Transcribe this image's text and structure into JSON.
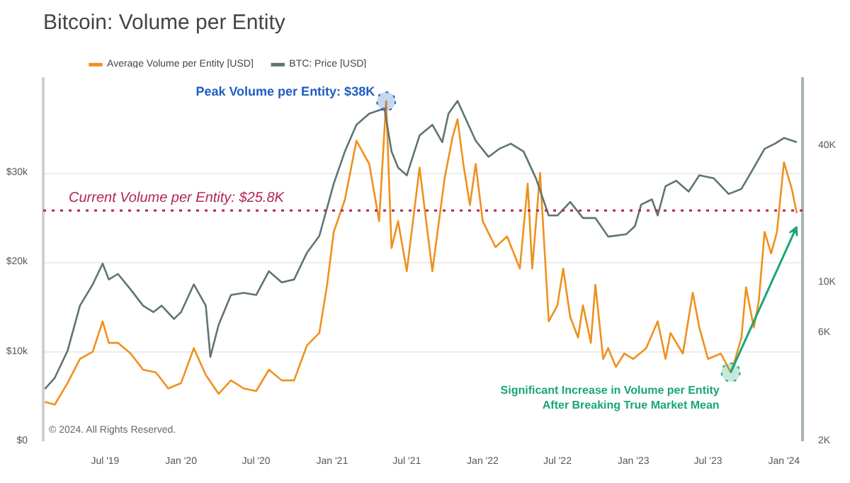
{
  "chart_data": {
    "type": "line",
    "title": "Bitcoin: Volume per Entity",
    "series": [
      {
        "name": "Average Volume per Entity [USD]",
        "color": "#f0901e",
        "x": [
          "2019-02-05",
          "2019-03-01",
          "2019-04-01",
          "2019-05-01",
          "2019-06-01",
          "2019-06-25",
          "2019-07-10",
          "2019-08-01",
          "2019-09-01",
          "2019-10-01",
          "2019-11-01",
          "2019-12-01",
          "2020-01-01",
          "2020-02-01",
          "2020-03-01",
          "2020-04-01",
          "2020-05-01",
          "2020-06-01",
          "2020-07-01",
          "2020-08-01",
          "2020-09-01",
          "2020-10-01",
          "2020-11-01",
          "2020-12-01",
          "2020-12-20",
          "2021-01-05",
          "2021-02-01",
          "2021-03-01",
          "2021-04-01",
          "2021-04-25",
          "2021-05-12",
          "2021-05-25",
          "2021-06-10",
          "2021-07-01",
          "2021-08-01",
          "2021-09-01",
          "2021-10-01",
          "2021-10-20",
          "2021-11-01",
          "2021-11-15",
          "2021-12-01",
          "2021-12-15",
          "2022-01-01",
          "2022-02-01",
          "2022-03-01",
          "2022-04-01",
          "2022-04-20",
          "2022-05-01",
          "2022-05-20",
          "2022-06-10",
          "2022-07-01",
          "2022-07-15",
          "2022-08-01",
          "2022-08-20",
          "2022-09-01",
          "2022-09-20",
          "2022-10-01",
          "2022-10-20",
          "2022-11-01",
          "2022-11-20",
          "2022-12-10",
          "2023-01-01",
          "2023-02-01",
          "2023-03-01",
          "2023-03-20",
          "2023-04-01",
          "2023-05-01",
          "2023-05-25",
          "2023-06-10",
          "2023-07-01",
          "2023-08-01",
          "2023-08-25",
          "2023-09-05",
          "2023-09-20",
          "2023-10-01",
          "2023-10-20",
          "2023-11-01",
          "2023-11-15",
          "2023-12-01",
          "2023-12-15",
          "2024-01-01",
          "2024-01-20",
          "2024-02-01"
        ],
        "values": [
          4400,
          4100,
          6500,
          9200,
          10000,
          13400,
          11000,
          11000,
          9800,
          8000,
          7700,
          5900,
          6500,
          10400,
          7400,
          5300,
          6800,
          5900,
          5600,
          8000,
          6800,
          6800,
          10700,
          12100,
          17500,
          23400,
          27000,
          33600,
          31000,
          24600,
          38000,
          21600,
          24600,
          19000,
          30600,
          19000,
          29500,
          34000,
          36000,
          31000,
          26400,
          31000,
          24600,
          21700,
          22900,
          19300,
          28800,
          19300,
          30000,
          13400,
          15200,
          19300,
          13900,
          11600,
          15200,
          11000,
          17500,
          9200,
          10400,
          8300,
          9800,
          9200,
          10400,
          13400,
          9200,
          12100,
          9800,
          16600,
          12700,
          9200,
          9800,
          7700,
          9200,
          11600,
          17200,
          12700,
          15700,
          23400,
          21000,
          23400,
          31200,
          28200,
          25500
        ]
      },
      {
        "name": "BTC: Price [USD]",
        "color": "#5f7572",
        "axis": "y2",
        "x": [
          "2019-02-05",
          "2019-03-01",
          "2019-04-01",
          "2019-05-01",
          "2019-06-01",
          "2019-06-25",
          "2019-07-10",
          "2019-08-01",
          "2019-09-01",
          "2019-10-01",
          "2019-10-26",
          "2019-11-15",
          "2019-12-15",
          "2020-01-01",
          "2020-02-01",
          "2020-03-01",
          "2020-03-12",
          "2020-04-01",
          "2020-05-01",
          "2020-06-01",
          "2020-07-01",
          "2020-08-01",
          "2020-09-01",
          "2020-10-01",
          "2020-11-01",
          "2020-12-01",
          "2021-01-05",
          "2021-02-01",
          "2021-03-01",
          "2021-04-01",
          "2021-05-08",
          "2021-05-25",
          "2021-06-10",
          "2021-07-01",
          "2021-08-01",
          "2021-09-01",
          "2021-09-25",
          "2021-10-10",
          "2021-11-01",
          "2021-12-15",
          "2022-01-15",
          "2022-02-10",
          "2022-03-10",
          "2022-04-10",
          "2022-05-10",
          "2022-06-10",
          "2022-07-01",
          "2022-08-01",
          "2022-09-01",
          "2022-10-01",
          "2022-11-01",
          "2022-12-15",
          "2023-01-05",
          "2023-01-20",
          "2023-02-15",
          "2023-03-01",
          "2023-03-20",
          "2023-04-15",
          "2023-05-15",
          "2023-06-10",
          "2023-07-15",
          "2023-08-20",
          "2023-09-20",
          "2023-10-20",
          "2023-11-15",
          "2023-12-10",
          "2024-01-01",
          "2024-02-01"
        ],
        "values": [
          3400,
          3800,
          5000,
          7900,
          9800,
          12100,
          10300,
          10900,
          9300,
          7900,
          7400,
          7900,
          6900,
          7400,
          9800,
          7900,
          4700,
          6500,
          8800,
          9000,
          8800,
          11200,
          10000,
          10300,
          13500,
          16000,
          27200,
          37700,
          49400,
          55300,
          58300,
          37700,
          32000,
          29600,
          44300,
          49400,
          41400,
          55300,
          62900,
          42000,
          35700,
          38700,
          40800,
          37700,
          28700,
          19700,
          19700,
          22600,
          19200,
          19200,
          15900,
          16300,
          17700,
          22000,
          23200,
          19700,
          26500,
          28000,
          25100,
          29600,
          28700,
          24500,
          25800,
          32000,
          38700,
          40800,
          43200,
          41400
        ]
      }
    ],
    "xlim": [
      "2019-02-01",
      "2024-02-15"
    ],
    "xticks": [
      {
        "value": "2019-07-01",
        "label": "Jul '19"
      },
      {
        "value": "2020-01-01",
        "label": "Jan '20"
      },
      {
        "value": "2020-07-01",
        "label": "Jul '20"
      },
      {
        "value": "2021-01-01",
        "label": "Jan '21"
      },
      {
        "value": "2021-07-01",
        "label": "Jul '21"
      },
      {
        "value": "2022-01-01",
        "label": "Jan '22"
      },
      {
        "value": "2022-07-01",
        "label": "Jul '22"
      },
      {
        "value": "2023-01-01",
        "label": "Jan '23"
      },
      {
        "value": "2023-07-01",
        "label": "Jul '23"
      },
      {
        "value": "2024-01-01",
        "label": "Jan '24"
      }
    ],
    "ylim": [
      0,
      40700
    ],
    "yticks": [
      {
        "value": 0,
        "label": "$0"
      },
      {
        "value": 10000,
        "label": "$10k"
      },
      {
        "value": 20000,
        "label": "$20k"
      },
      {
        "value": 30000,
        "label": "$30k"
      }
    ],
    "y2lim": [
      2000,
      80000
    ],
    "y2ticks": [
      {
        "value": 2000,
        "label": "2K"
      },
      {
        "value": 6000,
        "label": "6K"
      },
      {
        "value": 10000,
        "label": "10K"
      },
      {
        "value": 40000,
        "label": "40K"
      }
    ],
    "log": "y2",
    "grid": "y",
    "legend": "top",
    "ref_lines": [
      {
        "axis": "y",
        "value": 25800,
        "label": "Current Volume per Entity: $25.8K",
        "color": "#b3245c",
        "line_style": "dotted"
      }
    ],
    "annotations": [
      {
        "text": "Peak Volume per Entity: $38K",
        "x": "2021-05-12",
        "y": 38000
      },
      {
        "text": "Significant Increase in Volume per Entity After Breaking True Market Mean",
        "x": "2023-08-25",
        "y": 7700
      },
      "© 2024. All Rights Reserved."
    ]
  }
}
